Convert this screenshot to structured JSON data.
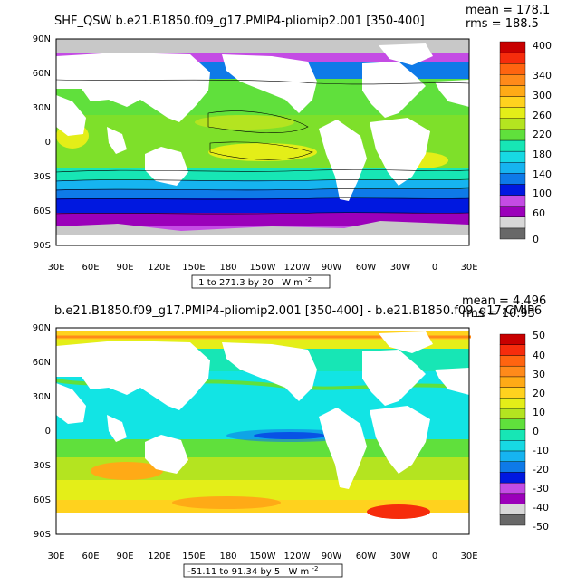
{
  "panels": [
    {
      "title": "SHF_QSW b.e21.B1850.f09_g17.PMIP4-pliomip2.001 [350-400]",
      "mean_label": "mean = 178.1",
      "rms_label": "rms = 188.5",
      "range_label": ".1 to 271.3 by 20",
      "units_label": "W m",
      "units_exp": "-2",
      "colorbar_labels": [
        "400",
        "340",
        "300",
        "260",
        "220",
        "180",
        "140",
        "100",
        "60",
        "0"
      ],
      "colors": {
        "ocean_base": "#7ee02a",
        "land": "#ffffff",
        "missing": "#c8c8c8"
      }
    },
    {
      "title": "b.e21.B1850.f09_g17.PMIP4-pliomip2.001 [350-400] - b.e21.B1850.f09_g17.CMIP6",
      "mean_label": "mean = 4.496",
      "rms_label": "rms = 10.93",
      "range_label": "-51.11 to 91.34 by 5",
      "units_label": "W m",
      "units_exp": "-2",
      "colorbar_labels": [
        "50",
        "40",
        "30",
        "20",
        "10",
        "0",
        "-10",
        "-20",
        "-30",
        "-40",
        "-50"
      ],
      "colors": {
        "ocean_base": "#12e4e4",
        "land": "#ffffff"
      }
    }
  ],
  "lat_labels": [
    "90N",
    "60N",
    "30N",
    "0",
    "30S",
    "60S",
    "90S"
  ],
  "lon_labels": [
    "30E",
    "60E",
    "90E",
    "120E",
    "150E",
    "180",
    "150W",
    "120W",
    "90W",
    "60W",
    "30W",
    "0",
    "30E"
  ],
  "colorbar1": [
    "#686868",
    "#d8d8d8",
    "#9b00ba",
    "#c44ce4",
    "#0018e0",
    "#0e7ae8",
    "#16b4f0",
    "#17d9e3",
    "#17e6b5",
    "#60e03c",
    "#b4e420",
    "#e4ee18",
    "#ffd21e",
    "#ffaa16",
    "#ff8a1a",
    "#ff6410",
    "#f62c0c",
    "#c80000"
  ],
  "colorbar2": [
    "#686868",
    "#d8d8d8",
    "#9b00ba",
    "#c44ce4",
    "#0018e0",
    "#0e7ae8",
    "#16b4f0",
    "#17d9e3",
    "#17e6b5",
    "#60e03c",
    "#b4e420",
    "#e4ee18",
    "#ffd21e",
    "#ffaa16",
    "#ff8a1a",
    "#ff6410",
    "#f62c0c",
    "#c80000"
  ]
}
